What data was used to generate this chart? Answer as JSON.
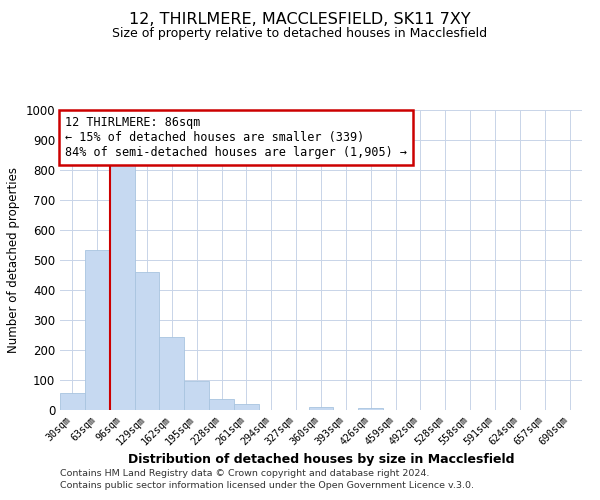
{
  "title": "12, THIRLMERE, MACCLESFIELD, SK11 7XY",
  "subtitle": "Size of property relative to detached houses in Macclesfield",
  "xlabel": "Distribution of detached houses by size in Macclesfield",
  "ylabel": "Number of detached properties",
  "bar_labels": [
    "30sqm",
    "63sqm",
    "96sqm",
    "129sqm",
    "162sqm",
    "195sqm",
    "228sqm",
    "261sqm",
    "294sqm",
    "327sqm",
    "360sqm",
    "393sqm",
    "426sqm",
    "459sqm",
    "492sqm",
    "528sqm",
    "558sqm",
    "591sqm",
    "624sqm",
    "657sqm",
    "690sqm"
  ],
  "bar_values": [
    57,
    535,
    830,
    460,
    245,
    97,
    38,
    20,
    0,
    0,
    10,
    0,
    7,
    0,
    0,
    0,
    0,
    0,
    0,
    0,
    0
  ],
  "bar_color": "#c6d9f1",
  "bar_edge_color": "#a8c4e0",
  "vline_x_index": 1.5,
  "vline_color": "#cc0000",
  "annotation_line1": "12 THIRLMERE: 86sqm",
  "annotation_line2": "← 15% of detached houses are smaller (339)",
  "annotation_line3": "84% of semi-detached houses are larger (1,905) →",
  "ylim": [
    0,
    1000
  ],
  "yticks": [
    0,
    100,
    200,
    300,
    400,
    500,
    600,
    700,
    800,
    900,
    1000
  ],
  "footer_line1": "Contains HM Land Registry data © Crown copyright and database right 2024.",
  "footer_line2": "Contains public sector information licensed under the Open Government Licence v.3.0.",
  "background_color": "#ffffff",
  "grid_color": "#c8d4e8"
}
